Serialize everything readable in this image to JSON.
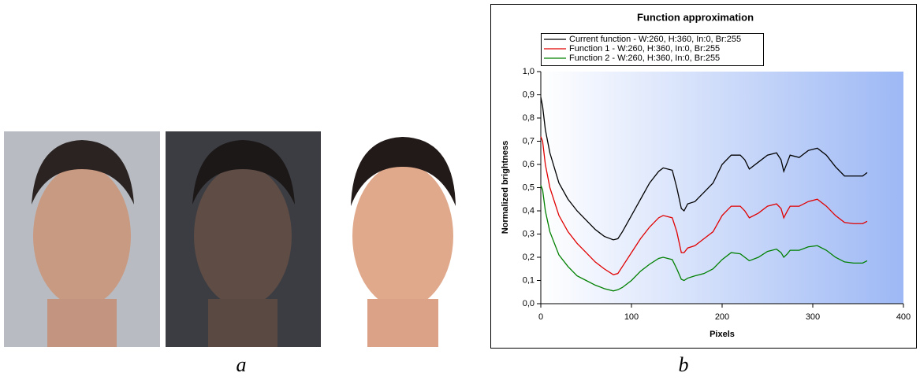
{
  "captions": [
    "a",
    "b"
  ],
  "chart_data": {
    "type": "line",
    "title": "Function approximation",
    "xlabel": "Pixels",
    "ylabel": "Normalized brightness",
    "xlim": [
      0,
      400
    ],
    "ylim": [
      0,
      1
    ],
    "xticks": [
      0,
      100,
      200,
      300,
      400
    ],
    "yticks": [
      {
        "value": 0,
        "label": "0,0"
      },
      {
        "value": 0.1,
        "label": "0,1"
      },
      {
        "value": 0.2,
        "label": "0,2"
      },
      {
        "value": 0.3,
        "label": "0,3"
      },
      {
        "value": 0.4,
        "label": "0,4"
      },
      {
        "value": 0.5,
        "label": "0,5"
      },
      {
        "value": 0.6,
        "label": "0,6"
      },
      {
        "value": 0.7,
        "label": "0,7"
      },
      {
        "value": 0.8,
        "label": "0,8"
      },
      {
        "value": 0.9,
        "label": "0,9"
      },
      {
        "value": 1,
        "label": "1,0"
      }
    ],
    "x": [
      0,
      2,
      5,
      10,
      20,
      30,
      40,
      50,
      60,
      70,
      80,
      85,
      90,
      100,
      110,
      120,
      130,
      135,
      140,
      145,
      150,
      155,
      158,
      162,
      170,
      180,
      190,
      200,
      210,
      220,
      225,
      230,
      240,
      250,
      260,
      265,
      268,
      272,
      275,
      285,
      295,
      305,
      315,
      325,
      335,
      345,
      355,
      360
    ],
    "series": [
      {
        "name": "Current function - W:260, H:360, In:0, Br:255",
        "color": "#000000",
        "values": [
          0.89,
          0.85,
          0.75,
          0.65,
          0.52,
          0.45,
          0.4,
          0.36,
          0.32,
          0.29,
          0.275,
          0.28,
          0.31,
          0.38,
          0.45,
          0.52,
          0.57,
          0.585,
          0.58,
          0.575,
          0.5,
          0.41,
          0.4,
          0.43,
          0.44,
          0.48,
          0.52,
          0.6,
          0.64,
          0.64,
          0.62,
          0.58,
          0.61,
          0.64,
          0.65,
          0.62,
          0.57,
          0.61,
          0.64,
          0.63,
          0.66,
          0.67,
          0.64,
          0.59,
          0.55,
          0.55,
          0.55,
          0.565
        ]
      },
      {
        "name": "Function  1 - W:260, H:360, In:0, Br:255",
        "color": "#e00000",
        "values": [
          0.72,
          0.7,
          0.6,
          0.5,
          0.38,
          0.31,
          0.26,
          0.22,
          0.18,
          0.15,
          0.125,
          0.13,
          0.16,
          0.22,
          0.28,
          0.33,
          0.37,
          0.38,
          0.375,
          0.37,
          0.31,
          0.22,
          0.22,
          0.24,
          0.25,
          0.28,
          0.31,
          0.38,
          0.42,
          0.42,
          0.4,
          0.37,
          0.39,
          0.42,
          0.43,
          0.41,
          0.37,
          0.4,
          0.42,
          0.42,
          0.44,
          0.45,
          0.42,
          0.38,
          0.35,
          0.345,
          0.345,
          0.355
        ]
      },
      {
        "name": "Function  2 - W:260, H:360, In:0, Br:255",
        "color": "#008000",
        "values": [
          0.51,
          0.49,
          0.4,
          0.31,
          0.21,
          0.16,
          0.12,
          0.1,
          0.08,
          0.065,
          0.055,
          0.06,
          0.07,
          0.1,
          0.14,
          0.17,
          0.195,
          0.2,
          0.195,
          0.19,
          0.15,
          0.105,
          0.1,
          0.11,
          0.12,
          0.13,
          0.15,
          0.19,
          0.22,
          0.215,
          0.2,
          0.185,
          0.2,
          0.225,
          0.235,
          0.22,
          0.2,
          0.215,
          0.23,
          0.23,
          0.245,
          0.25,
          0.23,
          0.2,
          0.18,
          0.175,
          0.175,
          0.185
        ]
      }
    ]
  }
}
